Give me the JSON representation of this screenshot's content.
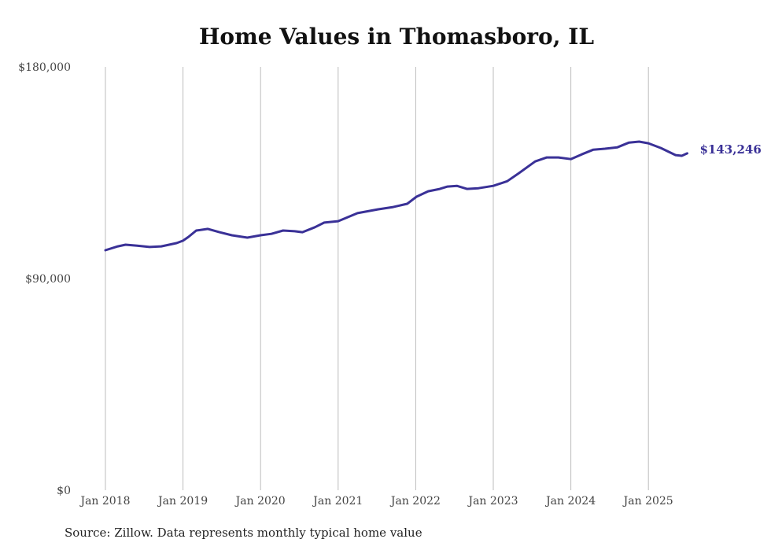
{
  "chart_data": {
    "type": "line",
    "title": "Home Values in Thomasboro, IL",
    "source": "Source: Zillow. Data represents monthly typical home value",
    "xlabel": "",
    "ylabel": "",
    "ylim": [
      0,
      180000
    ],
    "xlim": [
      2018,
      2025.5
    ],
    "yticks": [
      {
        "value": 0,
        "label": "$0"
      },
      {
        "value": 90000,
        "label": "$90,000"
      },
      {
        "value": 180000,
        "label": "$180,000"
      }
    ],
    "xticks": [
      {
        "value": 2018,
        "label": "Jan 2018"
      },
      {
        "value": 2019,
        "label": "Jan 2019"
      },
      {
        "value": 2020,
        "label": "Jan 2020"
      },
      {
        "value": 2021,
        "label": "Jan 2021"
      },
      {
        "value": 2022,
        "label": "Jan 2022"
      },
      {
        "value": 2023,
        "label": "Jan 2023"
      },
      {
        "value": 2024,
        "label": "Jan 2024"
      },
      {
        "value": 2025,
        "label": "Jan 2025"
      }
    ],
    "grid": "vertical",
    "series": [
      {
        "name": "Typical home value",
        "color": "#3a3197",
        "end_label": "$143,246",
        "points": [
          [
            2018.0,
            102050
          ],
          [
            2018.16,
            103700
          ],
          [
            2018.26,
            104400
          ],
          [
            2018.41,
            104000
          ],
          [
            2018.57,
            103400
          ],
          [
            2018.72,
            103700
          ],
          [
            2018.82,
            104400
          ],
          [
            2018.92,
            105100
          ],
          [
            2019.0,
            106100
          ],
          [
            2019.07,
            107700
          ],
          [
            2019.17,
            110400
          ],
          [
            2019.32,
            111100
          ],
          [
            2019.47,
            109700
          ],
          [
            2019.63,
            108400
          ],
          [
            2019.83,
            107400
          ],
          [
            2020.0,
            108400
          ],
          [
            2020.14,
            109000
          ],
          [
            2020.29,
            110400
          ],
          [
            2020.44,
            110100
          ],
          [
            2020.54,
            109700
          ],
          [
            2020.7,
            111800
          ],
          [
            2020.82,
            113800
          ],
          [
            2021.0,
            114400
          ],
          [
            2021.25,
            117800
          ],
          [
            2021.51,
            119400
          ],
          [
            2021.71,
            120400
          ],
          [
            2021.89,
            121800
          ],
          [
            2022.01,
            124800
          ],
          [
            2022.16,
            127100
          ],
          [
            2022.31,
            128100
          ],
          [
            2022.41,
            129100
          ],
          [
            2022.53,
            129400
          ],
          [
            2022.66,
            128100
          ],
          [
            2022.81,
            128400
          ],
          [
            2023.0,
            129400
          ],
          [
            2023.18,
            131400
          ],
          [
            2023.33,
            134800
          ],
          [
            2023.54,
            139800
          ],
          [
            2023.69,
            141500
          ],
          [
            2023.84,
            141500
          ],
          [
            2024.0,
            140800
          ],
          [
            2024.14,
            142800
          ],
          [
            2024.29,
            144800
          ],
          [
            2024.44,
            145200
          ],
          [
            2024.6,
            145800
          ],
          [
            2024.75,
            147800
          ],
          [
            2024.88,
            148200
          ],
          [
            2025.0,
            147500
          ],
          [
            2025.16,
            145500
          ],
          [
            2025.35,
            142500
          ],
          [
            2025.43,
            142200
          ],
          [
            2025.5,
            143246
          ]
        ]
      }
    ]
  }
}
